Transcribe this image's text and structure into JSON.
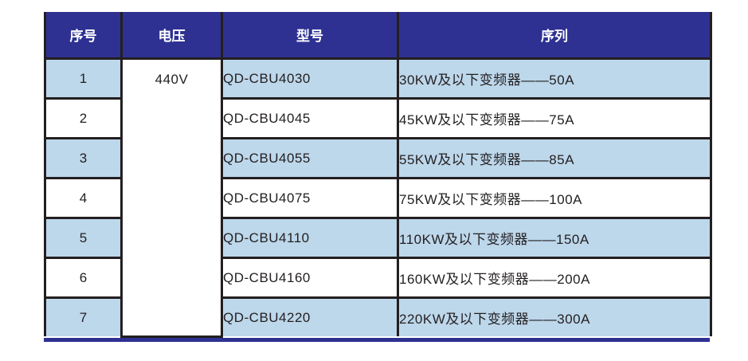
{
  "table": {
    "headers": {
      "serial": "序号",
      "voltage": "电压",
      "model": "型号",
      "series": "序列"
    },
    "voltage_merged_value": "440V",
    "rows": [
      {
        "serial": "1",
        "model": "QD-CBU4030",
        "series": "30KW及以下变频器——50A"
      },
      {
        "serial": "2",
        "model": "QD-CBU4045",
        "series": "45KW及以下变频器——75A"
      },
      {
        "serial": "3",
        "model": "QD-CBU4055",
        "series": "55KW及以下变频器——85A"
      },
      {
        "serial": "4",
        "model": "QD-CBU4075",
        "series": "75KW及以下变频器——100A"
      },
      {
        "serial": "5",
        "model": "QD-CBU4110",
        "series": "110KW及以下变频器——150A"
      },
      {
        "serial": "6",
        "model": "QD-CBU4160",
        "series": "160KW及以下变频器——200A"
      },
      {
        "serial": "7",
        "model": "QD-CBU4220",
        "series": "220KW及以下变频器——300A"
      }
    ],
    "colors": {
      "header_bg": "#2E3192",
      "header_text": "#FFFFFF",
      "row_highlight_bg": "#BDD7EB",
      "row_plain_bg": "#FFFFFF",
      "grid_border": "#231F20",
      "bottom_accent_border": "#2E3192",
      "body_text": "#231F20"
    }
  }
}
